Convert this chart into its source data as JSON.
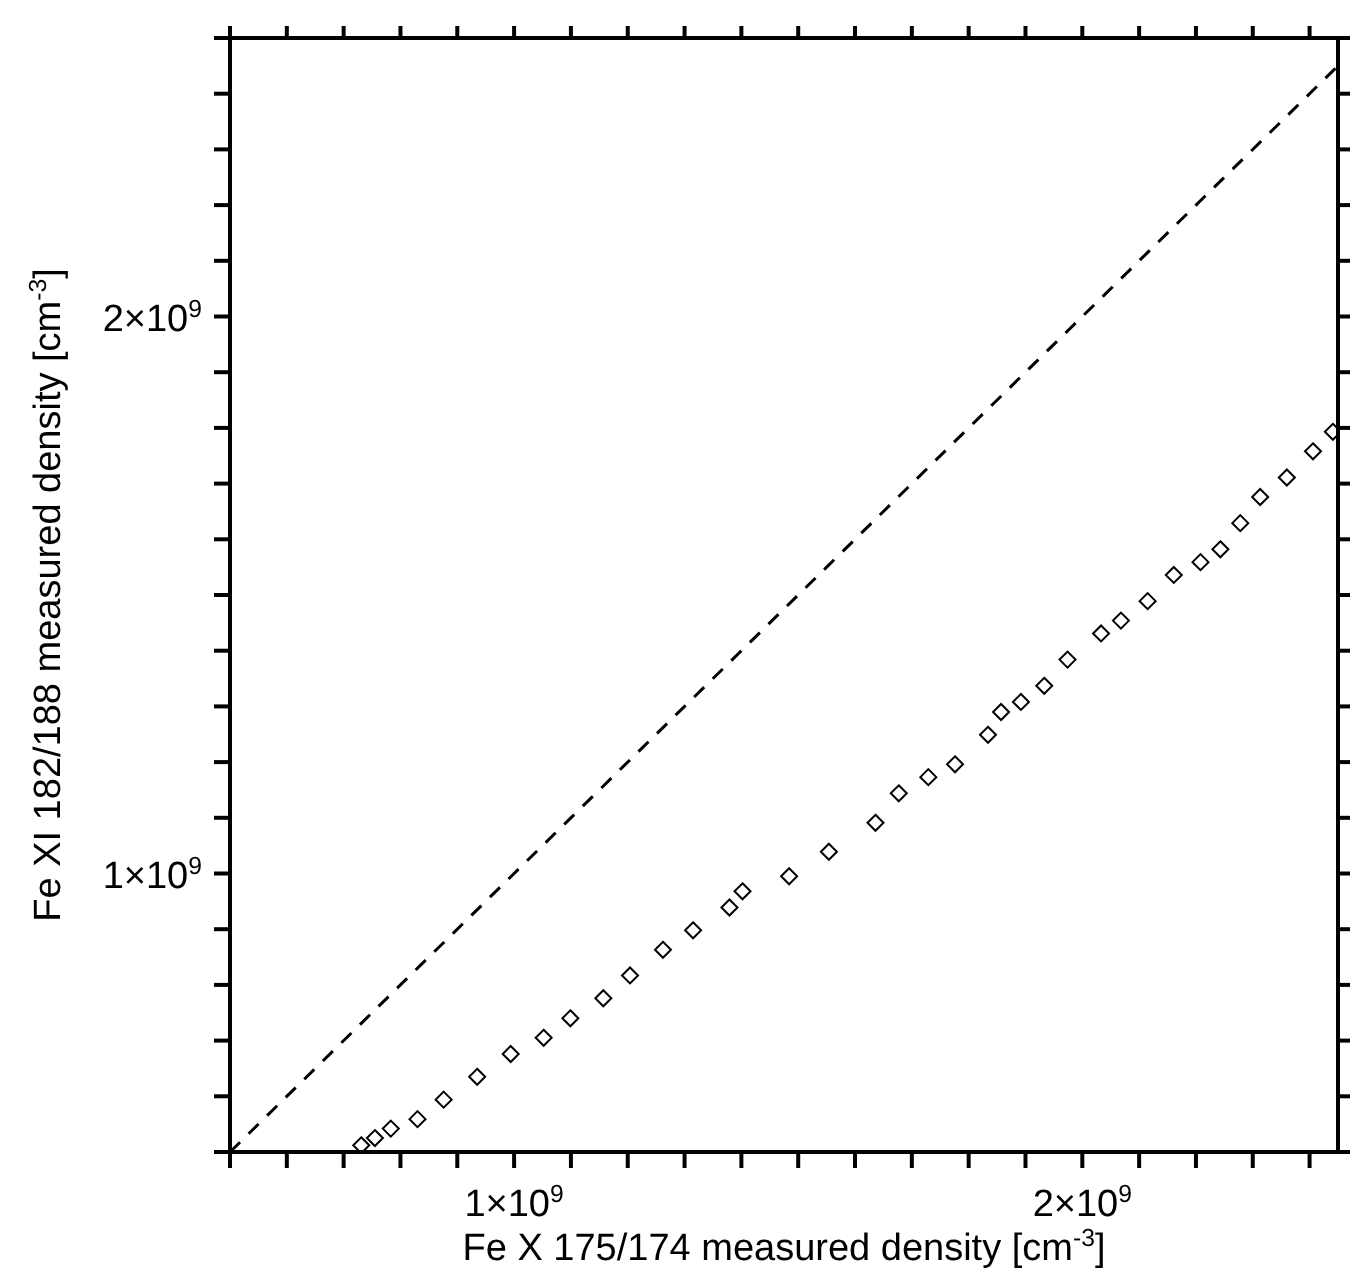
{
  "chart_data": {
    "type": "scatter",
    "xlabel": "Fe X 175/174 measured density [cm$^{-3}$]",
    "ylabel": "Fe XI 182/188 measured density [cm$^{-3}$]",
    "xlim": [
      500000000.0,
      2450000000.0
    ],
    "ylim": [
      500000000.0,
      2500000000.0
    ],
    "marker": "diamond",
    "xticks": [
      {
        "value": 500000000.0,
        "label": null
      },
      {
        "value": 600000000.0,
        "label": null
      },
      {
        "value": 700000000.0,
        "label": null
      },
      {
        "value": 800000000.0,
        "label": null
      },
      {
        "value": 900000000.0,
        "label": null
      },
      {
        "value": 1000000000.0,
        "label": "1×10$^{9}$"
      },
      {
        "value": 1100000000.0,
        "label": null
      },
      {
        "value": 1200000000.0,
        "label": null
      },
      {
        "value": 1300000000.0,
        "label": null
      },
      {
        "value": 1400000000.0,
        "label": null
      },
      {
        "value": 1500000000.0,
        "label": null
      },
      {
        "value": 1600000000.0,
        "label": null
      },
      {
        "value": 1700000000.0,
        "label": null
      },
      {
        "value": 1800000000.0,
        "label": null
      },
      {
        "value": 1900000000.0,
        "label": null
      },
      {
        "value": 2000000000.0,
        "label": "2×10$^{9}$"
      },
      {
        "value": 2100000000.0,
        "label": null
      },
      {
        "value": 2200000000.0,
        "label": null
      },
      {
        "value": 2300000000.0,
        "label": null
      },
      {
        "value": 2400000000.0,
        "label": null
      }
    ],
    "yticks": [
      {
        "value": 500000000.0,
        "label": null
      },
      {
        "value": 600000000.0,
        "label": null
      },
      {
        "value": 700000000.0,
        "label": null
      },
      {
        "value": 800000000.0,
        "label": null
      },
      {
        "value": 900000000.0,
        "label": null
      },
      {
        "value": 1000000000.0,
        "label": "1×10$^{9}$"
      },
      {
        "value": 1100000000.0,
        "label": null
      },
      {
        "value": 1200000000.0,
        "label": null
      },
      {
        "value": 1300000000.0,
        "label": null
      },
      {
        "value": 1400000000.0,
        "label": null
      },
      {
        "value": 1500000000.0,
        "label": null
      },
      {
        "value": 1600000000.0,
        "label": null
      },
      {
        "value": 1700000000.0,
        "label": null
      },
      {
        "value": 1800000000.0,
        "label": null
      },
      {
        "value": 1900000000.0,
        "label": null
      },
      {
        "value": 2000000000.0,
        "label": "2×10$^{9}$"
      },
      {
        "value": 2100000000.0,
        "label": null
      },
      {
        "value": 2200000000.0,
        "label": null
      },
      {
        "value": 2300000000.0,
        "label": null
      },
      {
        "value": 2400000000.0,
        "label": null
      },
      {
        "value": 2500000000.0,
        "label": null
      }
    ],
    "series": [
      {
        "color": "#000000",
        "x": [
          731000000.0,
          755000000.0,
          783000000.0,
          830000000.0,
          876000000.0,
          935000000.0,
          994000000.0,
          1052000000.0,
          1099000000.0,
          1157000000.0,
          1204000000.0,
          1262000000.0,
          1315000000.0,
          1379000000.0,
          1402000000.0,
          1484000000.0,
          1554000000.0,
          1636000000.0,
          1677000000.0,
          1729000000.0,
          1776000000.0,
          1834000000.0,
          1857000000.0,
          1892000000.0,
          1933000000.0,
          1974000000.0,
          2033000000.0,
          2068000000.0,
          2115000000.0,
          2161000000.0,
          2208000000.0,
          2243000000.0,
          2278000000.0,
          2313000000.0,
          2360000000.0,
          2406000000.0,
          2441000000.0
        ],
        "values": [
          512000000.0,
          525000000.0,
          542000000.0,
          559000000.0,
          594000000.0,
          635000000.0,
          676000000.0,
          705000000.0,
          740000000.0,
          776000000.0,
          817000000.0,
          863000000.0,
          898000000.0,
          939000000.0,
          968000000.0,
          995000000.0,
          1039000000.0,
          1091000000.0,
          1144000000.0,
          1173000000.0,
          1196000000.0,
          1249000000.0,
          1290000000.0,
          1308000000.0,
          1337000000.0,
          1384000000.0,
          1431000000.0,
          1454000000.0,
          1489000000.0,
          1536000000.0,
          1559000000.0,
          1582000000.0,
          1629000000.0,
          1676000000.0,
          1711000000.0,
          1758000000.0,
          1793000000.0
        ]
      },
      {
        "type": "line",
        "color": "#000000",
        "line_style": "dashed",
        "marker": "none",
        "x": [
          500000000.0,
          2450000000.0
        ],
        "values": [
          500000000.0,
          2450000000.0
        ]
      }
    ]
  }
}
